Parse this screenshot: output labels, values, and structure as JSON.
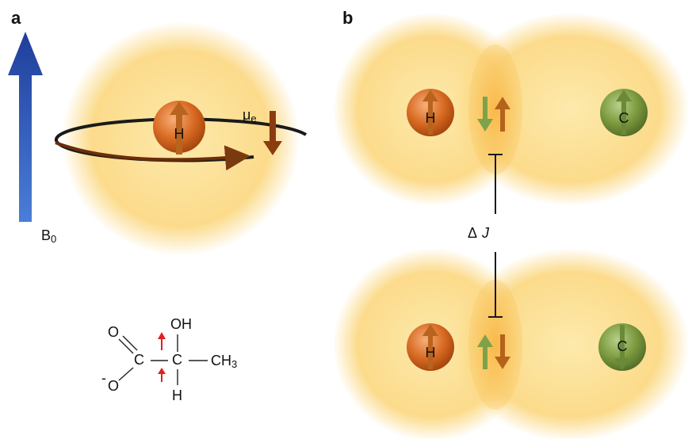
{
  "panel_a": {
    "label": "a",
    "atom": "H",
    "field": {
      "symbol": "B",
      "subscript": "0"
    },
    "moment": {
      "symbol": "μ",
      "subscript": "e"
    }
  },
  "panel_b": {
    "label": "b",
    "top": {
      "atoms": [
        "H",
        "C"
      ]
    },
    "bottom": {
      "atoms": [
        "H",
        "C"
      ]
    },
    "coupling": {
      "symbol": "Δ",
      "variable": "J"
    }
  },
  "molecule": {
    "carbonyl_oxygen": "O",
    "carboxyl_carbon": "C",
    "charge": "-",
    "carboxylate_oxygen": "O",
    "alpha_carbon": "C",
    "hydroxyl": "OH",
    "hydrogen": "H",
    "methyl": {
      "symbol": "CH",
      "subscript": "3"
    }
  }
}
